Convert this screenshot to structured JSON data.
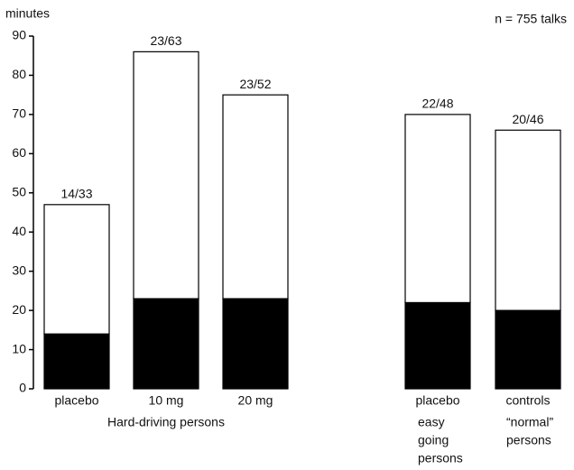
{
  "chart_data": {
    "type": "bar",
    "stacked": true,
    "y_label": "minutes",
    "annotation": "n = 755 talks",
    "categories": [
      "placebo",
      "10 mg",
      "20 mg",
      "placebo",
      "controls"
    ],
    "series": [
      {
        "color": "#000000",
        "values": [
          14,
          23,
          23,
          22,
          20
        ]
      },
      {
        "color": "#ffffff",
        "values": [
          33,
          63,
          52,
          48,
          46
        ]
      }
    ],
    "bar_labels": [
      "14/33",
      "23/63",
      "23/52",
      "22/48",
      "20/46"
    ],
    "group_labels": [
      [
        "Hard-driving persons"
      ],
      [
        "easy",
        "going",
        "persons"
      ],
      [
        "“normal”",
        "persons"
      ]
    ],
    "ylim": [
      0,
      90
    ],
    "yticks": [
      0,
      10,
      20,
      30,
      40,
      50,
      60,
      70,
      80,
      90
    ]
  }
}
